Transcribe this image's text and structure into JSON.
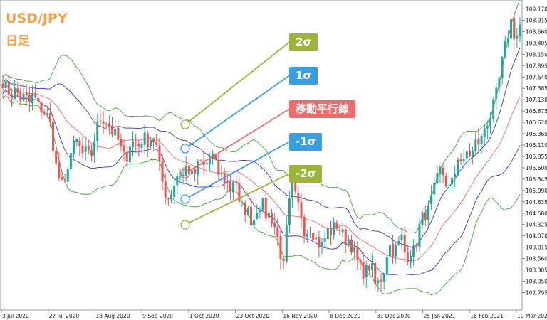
{
  "header": {
    "symbol": "USD/JPY",
    "timeframe": "日足"
  },
  "annotations": [
    {
      "label": "2σ",
      "color": "#9bb53a"
    },
    {
      "label": "1σ",
      "color": "#3a9fe0"
    },
    {
      "label": "移動平行線",
      "color": "#ef6a6a"
    },
    {
      "label": "-1σ",
      "color": "#3a9fe0"
    },
    {
      "label": "-2σ",
      "color": "#9bb53a"
    }
  ],
  "chart_data": {
    "type": "candlestick",
    "indicator": "Bollinger Bands",
    "colors": {
      "up": "#26a69a",
      "down": "#ef5350",
      "ma": "#ef6a6a",
      "band1": "#3434c8",
      "band2": "#3fa33f"
    },
    "ylim": [
      102.7,
      109.3
    ],
    "y_ticks": [
      "109.170",
      "108.915",
      "108.660",
      "108.405",
      "108.150",
      "107.895",
      "107.640",
      "107.385",
      "107.130",
      "106.875",
      "106.620",
      "106.365",
      "106.110",
      "105.855",
      "105.600",
      "105.345",
      "105.090",
      "104.835",
      "104.580",
      "104.325",
      "104.070",
      "103.815",
      "103.560",
      "103.305",
      "103.050",
      "102.795"
    ],
    "x_ticks": [
      "3 Jul 2020",
      "27 Jul 2020",
      "18 Aug 2020",
      "9 Sep 2020",
      "1 Oct 2020",
      "23 Oct 2020",
      "16 Nov 2020",
      "8 Dec 2020",
      "31 Dec 2020",
      "25 Jan 2021",
      "16 Feb 2021",
      "10 Mar 2021"
    ],
    "path_close": [
      107.55,
      107.35,
      107.25,
      107.35,
      107.15,
      107.2,
      107.05,
      107.25,
      107.0,
      106.9,
      106.8,
      106.5,
      105.7,
      105.3,
      105.1,
      105.8,
      106.05,
      106.2,
      105.9,
      105.95,
      105.8,
      106.3,
      106.7,
      106.7,
      106.6,
      106.4,
      106.3,
      106.0,
      105.75,
      106.15,
      106.2,
      106.1,
      106.3,
      106.2,
      106.3,
      106.1,
      105.45,
      105.05,
      104.9,
      105.2,
      105.5,
      105.4,
      105.65,
      105.4,
      105.5,
      105.75,
      105.6,
      105.8,
      105.85,
      105.5,
      105.4,
      105.3,
      105.1,
      105.5,
      104.7,
      104.7,
      104.6,
      104.35,
      104.7,
      104.85,
      104.55,
      104.55,
      104.3,
      103.9,
      103.3,
      104.5,
      105.2,
      104.85,
      104.6,
      104.1,
      104.3,
      104.1,
      103.9,
      103.85,
      104.2,
      104.15,
      104.35,
      104.2,
      104.0,
      104.0,
      103.75,
      103.45,
      103.25,
      103.3,
      103.45,
      102.95,
      103.05,
      103.3,
      103.9,
      103.75,
      103.8,
      104.05,
      103.55,
      103.75,
      103.7,
      104.25,
      104.55,
      104.6,
      104.95,
      105.3,
      105.6,
      105.3,
      105.1,
      105.4,
      105.95,
      105.6,
      106.0,
      105.85,
      106.2,
      106.15,
      106.55,
      106.7,
      107.0,
      107.4,
      108.0,
      108.5,
      108.9,
      108.45,
      108.8
    ]
  }
}
